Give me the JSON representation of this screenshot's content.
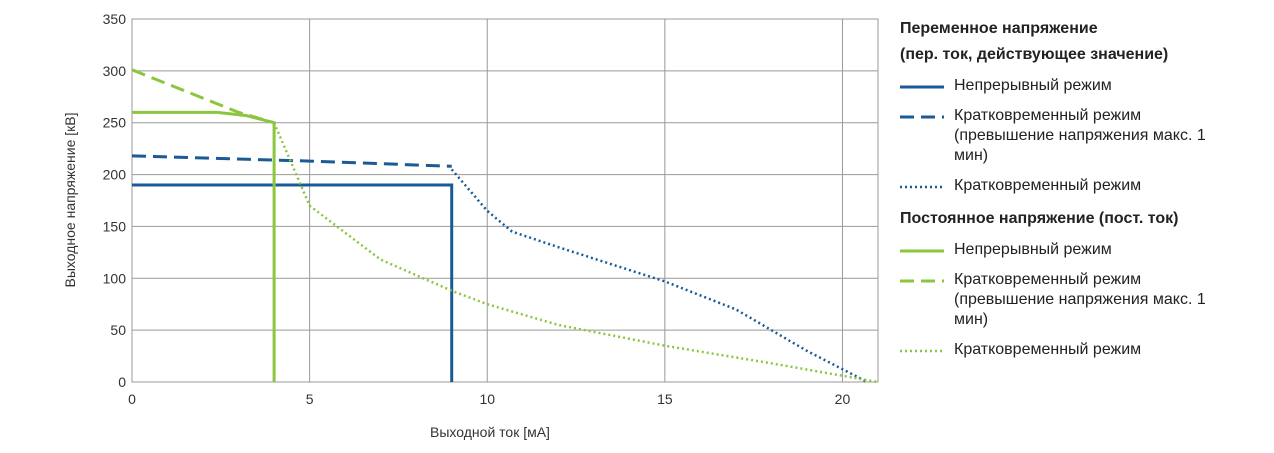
{
  "chart_data": {
    "type": "line",
    "x_label": "Выходной ток [мА]",
    "y_label": "Выходное напряжение [кВ]",
    "xlim": [
      0,
      21
    ],
    "xticks": [
      0,
      5,
      10,
      15,
      20
    ],
    "ylim": [
      0,
      350
    ],
    "yticks": [
      0,
      50,
      100,
      150,
      200,
      250,
      300,
      350
    ],
    "grid": true,
    "legend_headings": [
      "Переменное напряжение",
      "(пер. ток, действующее значение)",
      "Постоянное напряжение (пост. ток)"
    ],
    "series": [
      {
        "name": "Непрерывный режим",
        "color": "#1a5a96",
        "style": "solid",
        "x": [
          0,
          9,
          9
        ],
        "values": [
          190,
          190,
          0
        ]
      },
      {
        "name": "Кратковременный режим (превышение напряжения макс. 1 мин)",
        "color": "#1a5a96",
        "style": "dashed",
        "x": [
          0,
          5,
          9
        ],
        "values": [
          218,
          213,
          208
        ]
      },
      {
        "name": "Кратковременный режим",
        "color": "#1a5a96",
        "style": "dotted",
        "x": [
          9,
          10,
          10.7,
          12,
          15,
          17,
          19,
          20.7
        ],
        "values": [
          205,
          165,
          145,
          130,
          97,
          70,
          30,
          0
        ]
      },
      {
        "name": "Непрерывный режим",
        "color": "#8cc63f",
        "style": "solid",
        "x": [
          0,
          2.4,
          3.2,
          4,
          4
        ],
        "values": [
          260,
          260,
          257,
          250,
          0
        ]
      },
      {
        "name": "Кратковременный режим (превышение напряжения макс. 1 мин)",
        "color": "#8cc63f",
        "style": "dashed",
        "x": [
          0,
          3,
          4
        ],
        "values": [
          301,
          260,
          250
        ]
      },
      {
        "name": "Кратковременный режим",
        "color": "#8cc63f",
        "style": "dotted",
        "x": [
          4,
          5,
          7,
          9,
          10,
          12,
          15,
          18,
          20.5,
          21
        ],
        "values": [
          250,
          170,
          118,
          88,
          75,
          55,
          35,
          18,
          3,
          0
        ]
      }
    ]
  }
}
